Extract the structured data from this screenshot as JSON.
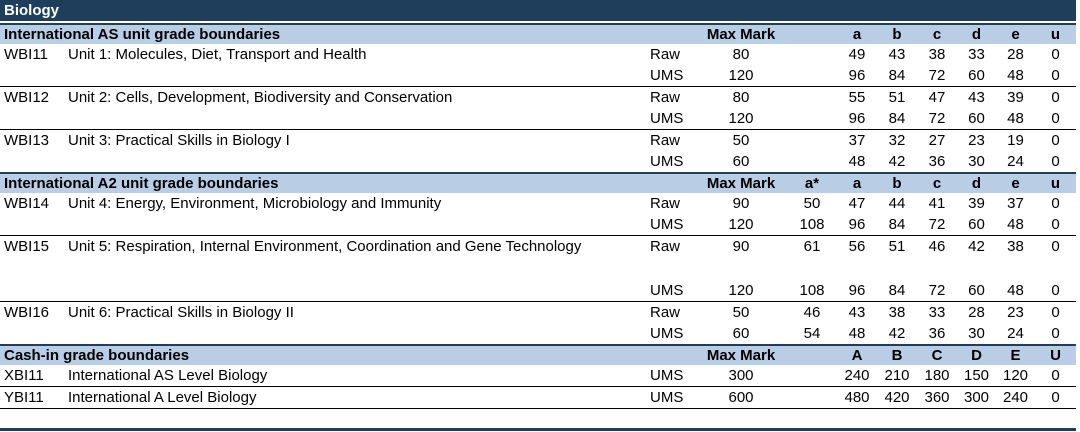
{
  "title": "Biology",
  "as_section": {
    "heading": "International AS unit grade boundaries",
    "col_max": "Max Mark",
    "grades": [
      "a",
      "b",
      "c",
      "d",
      "e",
      "u"
    ],
    "units": [
      {
        "code": "WBI11",
        "name": "Unit 1: Molecules, Diet, Transport and Health",
        "raw": {
          "label": "Raw",
          "max": "80",
          "vals": [
            "49",
            "43",
            "38",
            "33",
            "28",
            "0"
          ]
        },
        "ums": {
          "label": "UMS",
          "max": "120",
          "vals": [
            "96",
            "84",
            "72",
            "60",
            "48",
            "0"
          ]
        }
      },
      {
        "code": "WBI12",
        "name": "Unit 2: Cells, Development, Biodiversity and Conservation",
        "raw": {
          "label": "Raw",
          "max": "80",
          "vals": [
            "55",
            "51",
            "47",
            "43",
            "39",
            "0"
          ]
        },
        "ums": {
          "label": "UMS",
          "max": "120",
          "vals": [
            "96",
            "84",
            "72",
            "60",
            "48",
            "0"
          ]
        }
      },
      {
        "code": "WBI13",
        "name": "Unit 3: Practical Skills in Biology I",
        "raw": {
          "label": "Raw",
          "max": "50",
          "vals": [
            "37",
            "32",
            "27",
            "23",
            "19",
            "0"
          ]
        },
        "ums": {
          "label": "UMS",
          "max": "60",
          "vals": [
            "48",
            "42",
            "36",
            "30",
            "24",
            "0"
          ]
        }
      }
    ]
  },
  "a2_section": {
    "heading": "International A2 unit grade boundaries",
    "col_max": "Max Mark",
    "grades": [
      "a*",
      "a",
      "b",
      "c",
      "d",
      "e",
      "u"
    ],
    "units": [
      {
        "code": "WBI14",
        "name": "Unit 4: Energy, Environment, Microbiology and Immunity",
        "raw": {
          "label": "Raw",
          "max": "90",
          "vals": [
            "50",
            "47",
            "44",
            "41",
            "39",
            "37",
            "0"
          ]
        },
        "ums": {
          "label": "UMS",
          "max": "120",
          "vals": [
            "108",
            "96",
            "84",
            "72",
            "60",
            "48",
            "0"
          ]
        }
      },
      {
        "code": "WBI15",
        "name": "Unit 5: Respiration, Internal Environment, Coordination and Gene Technology",
        "raw": {
          "label": "Raw",
          "max": "90",
          "vals": [
            "61",
            "56",
            "51",
            "46",
            "42",
            "38",
            "0"
          ]
        },
        "ums": {
          "label": "UMS",
          "max": "120",
          "vals": [
            "108",
            "96",
            "84",
            "72",
            "60",
            "48",
            "0"
          ]
        }
      },
      {
        "code": "WBI16",
        "name": "Unit 6: Practical Skills in Biology II",
        "raw": {
          "label": "Raw",
          "max": "50",
          "vals": [
            "46",
            "43",
            "38",
            "33",
            "28",
            "23",
            "0"
          ]
        },
        "ums": {
          "label": "UMS",
          "max": "60",
          "vals": [
            "54",
            "48",
            "42",
            "36",
            "30",
            "24",
            "0"
          ]
        }
      }
    ]
  },
  "cashin_section": {
    "heading": "Cash-in grade boundaries",
    "col_max": "Max Mark",
    "grades": [
      "A",
      "B",
      "C",
      "D",
      "E",
      "U"
    ],
    "rows": [
      {
        "code": "XBI11",
        "name": "International AS Level Biology",
        "label": "UMS",
        "max": "300",
        "vals": [
          "240",
          "210",
          "180",
          "150",
          "120",
          "0"
        ]
      },
      {
        "code": "YBI11",
        "name": "International A Level Biology",
        "label": "UMS",
        "max": "600",
        "vals": [
          "480",
          "420",
          "360",
          "300",
          "240",
          "0"
        ]
      }
    ]
  }
}
